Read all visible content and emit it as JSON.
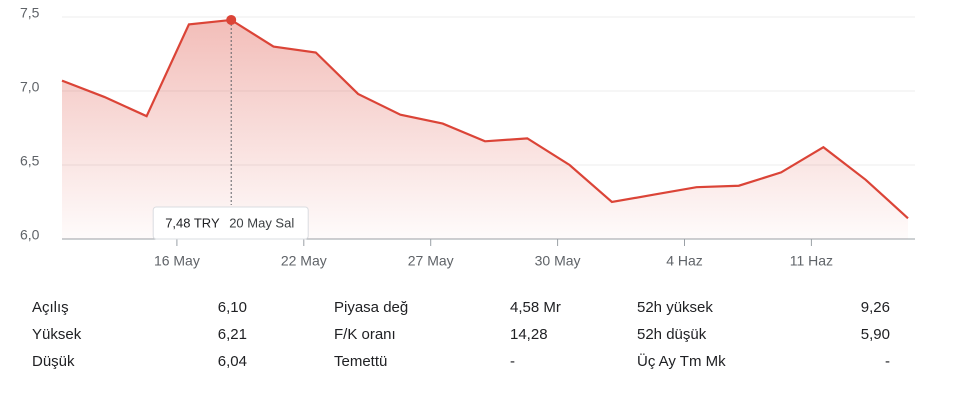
{
  "chart_data": {
    "type": "line",
    "categories": [
      null,
      null,
      null,
      "16 May",
      null,
      null,
      "22 May",
      null,
      null,
      "27 May",
      null,
      null,
      "30 May",
      null,
      null,
      "4 Haz",
      null,
      null,
      "11 Haz",
      null,
      null
    ],
    "series": [
      {
        "name": "TRY",
        "color": "#db4437",
        "values": [
          7.07,
          6.96,
          6.83,
          7.45,
          7.48,
          7.3,
          7.26,
          6.98,
          6.84,
          6.78,
          6.66,
          6.68,
          6.5,
          6.25,
          6.3,
          6.35,
          6.36,
          6.45,
          6.62,
          6.4,
          6.14
        ]
      }
    ],
    "ylim": [
      6.0,
      7.5
    ],
    "yticks": [
      {
        "value": 6.0,
        "label": "6,0"
      },
      {
        "value": 6.5,
        "label": "6,5"
      },
      {
        "value": 7.0,
        "label": "7,0"
      },
      {
        "value": 7.5,
        "label": "7,5"
      }
    ],
    "grid": true,
    "tooltip": {
      "value": "7,48 TRY",
      "date": "20 May Sal"
    }
  },
  "stats": [
    [
      {
        "label": "Açılış",
        "value": "6,10"
      },
      {
        "label": "Piyasa değ",
        "value": "4,58 Mr"
      },
      {
        "label": "52h yüksek",
        "value": "9,26"
      }
    ],
    [
      {
        "label": "Yüksek",
        "value": "6,21"
      },
      {
        "label": "F/K oranı",
        "value": "14,28"
      },
      {
        "label": "52h düşük",
        "value": "5,90"
      }
    ],
    [
      {
        "label": "Düşük",
        "value": "6,04"
      },
      {
        "label": "Temettü",
        "value": "-"
      },
      {
        "label": "Üç Ay Tm Mk",
        "value": "-"
      }
    ]
  ]
}
